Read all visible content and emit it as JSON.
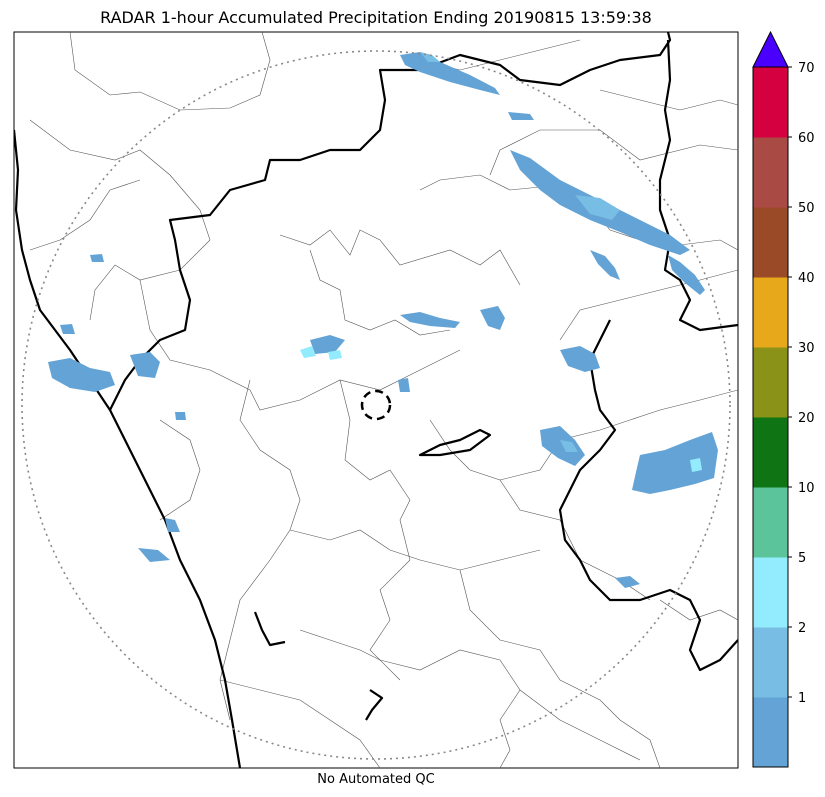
{
  "title": "RADAR 1-hour Accumulated Precipitation Ending 20190815 13:59:38",
  "footer": "No Automated QC",
  "colorbar": {
    "tick_labels": [
      "1",
      "2",
      "5",
      "10",
      "20",
      "30",
      "40",
      "50",
      "60",
      "70"
    ],
    "bins": [
      {
        "range": "<1",
        "color": "#64a3d5"
      },
      {
        "range": "1-2",
        "color": "#78bde3"
      },
      {
        "range": "2-5",
        "color": "#93ecfd"
      },
      {
        "range": "5-10",
        "color": "#5bc49a"
      },
      {
        "range": "10-20",
        "color": "#0e7414"
      },
      {
        "range": "20-30",
        "color": "#8a9318"
      },
      {
        "range": "30-40",
        "color": "#e8a81b"
      },
      {
        "range": "40-50",
        "color": "#9a4a27"
      },
      {
        "range": "50-60",
        "color": "#aa4a45"
      },
      {
        "range": "60-70",
        "color": "#d4003f"
      },
      {
        "range": ">70",
        "color": "#4a00ff"
      }
    ]
  },
  "map": {
    "range_ring": "dotted grey circle",
    "radar_site_marker": "dashed black circle"
  }
}
